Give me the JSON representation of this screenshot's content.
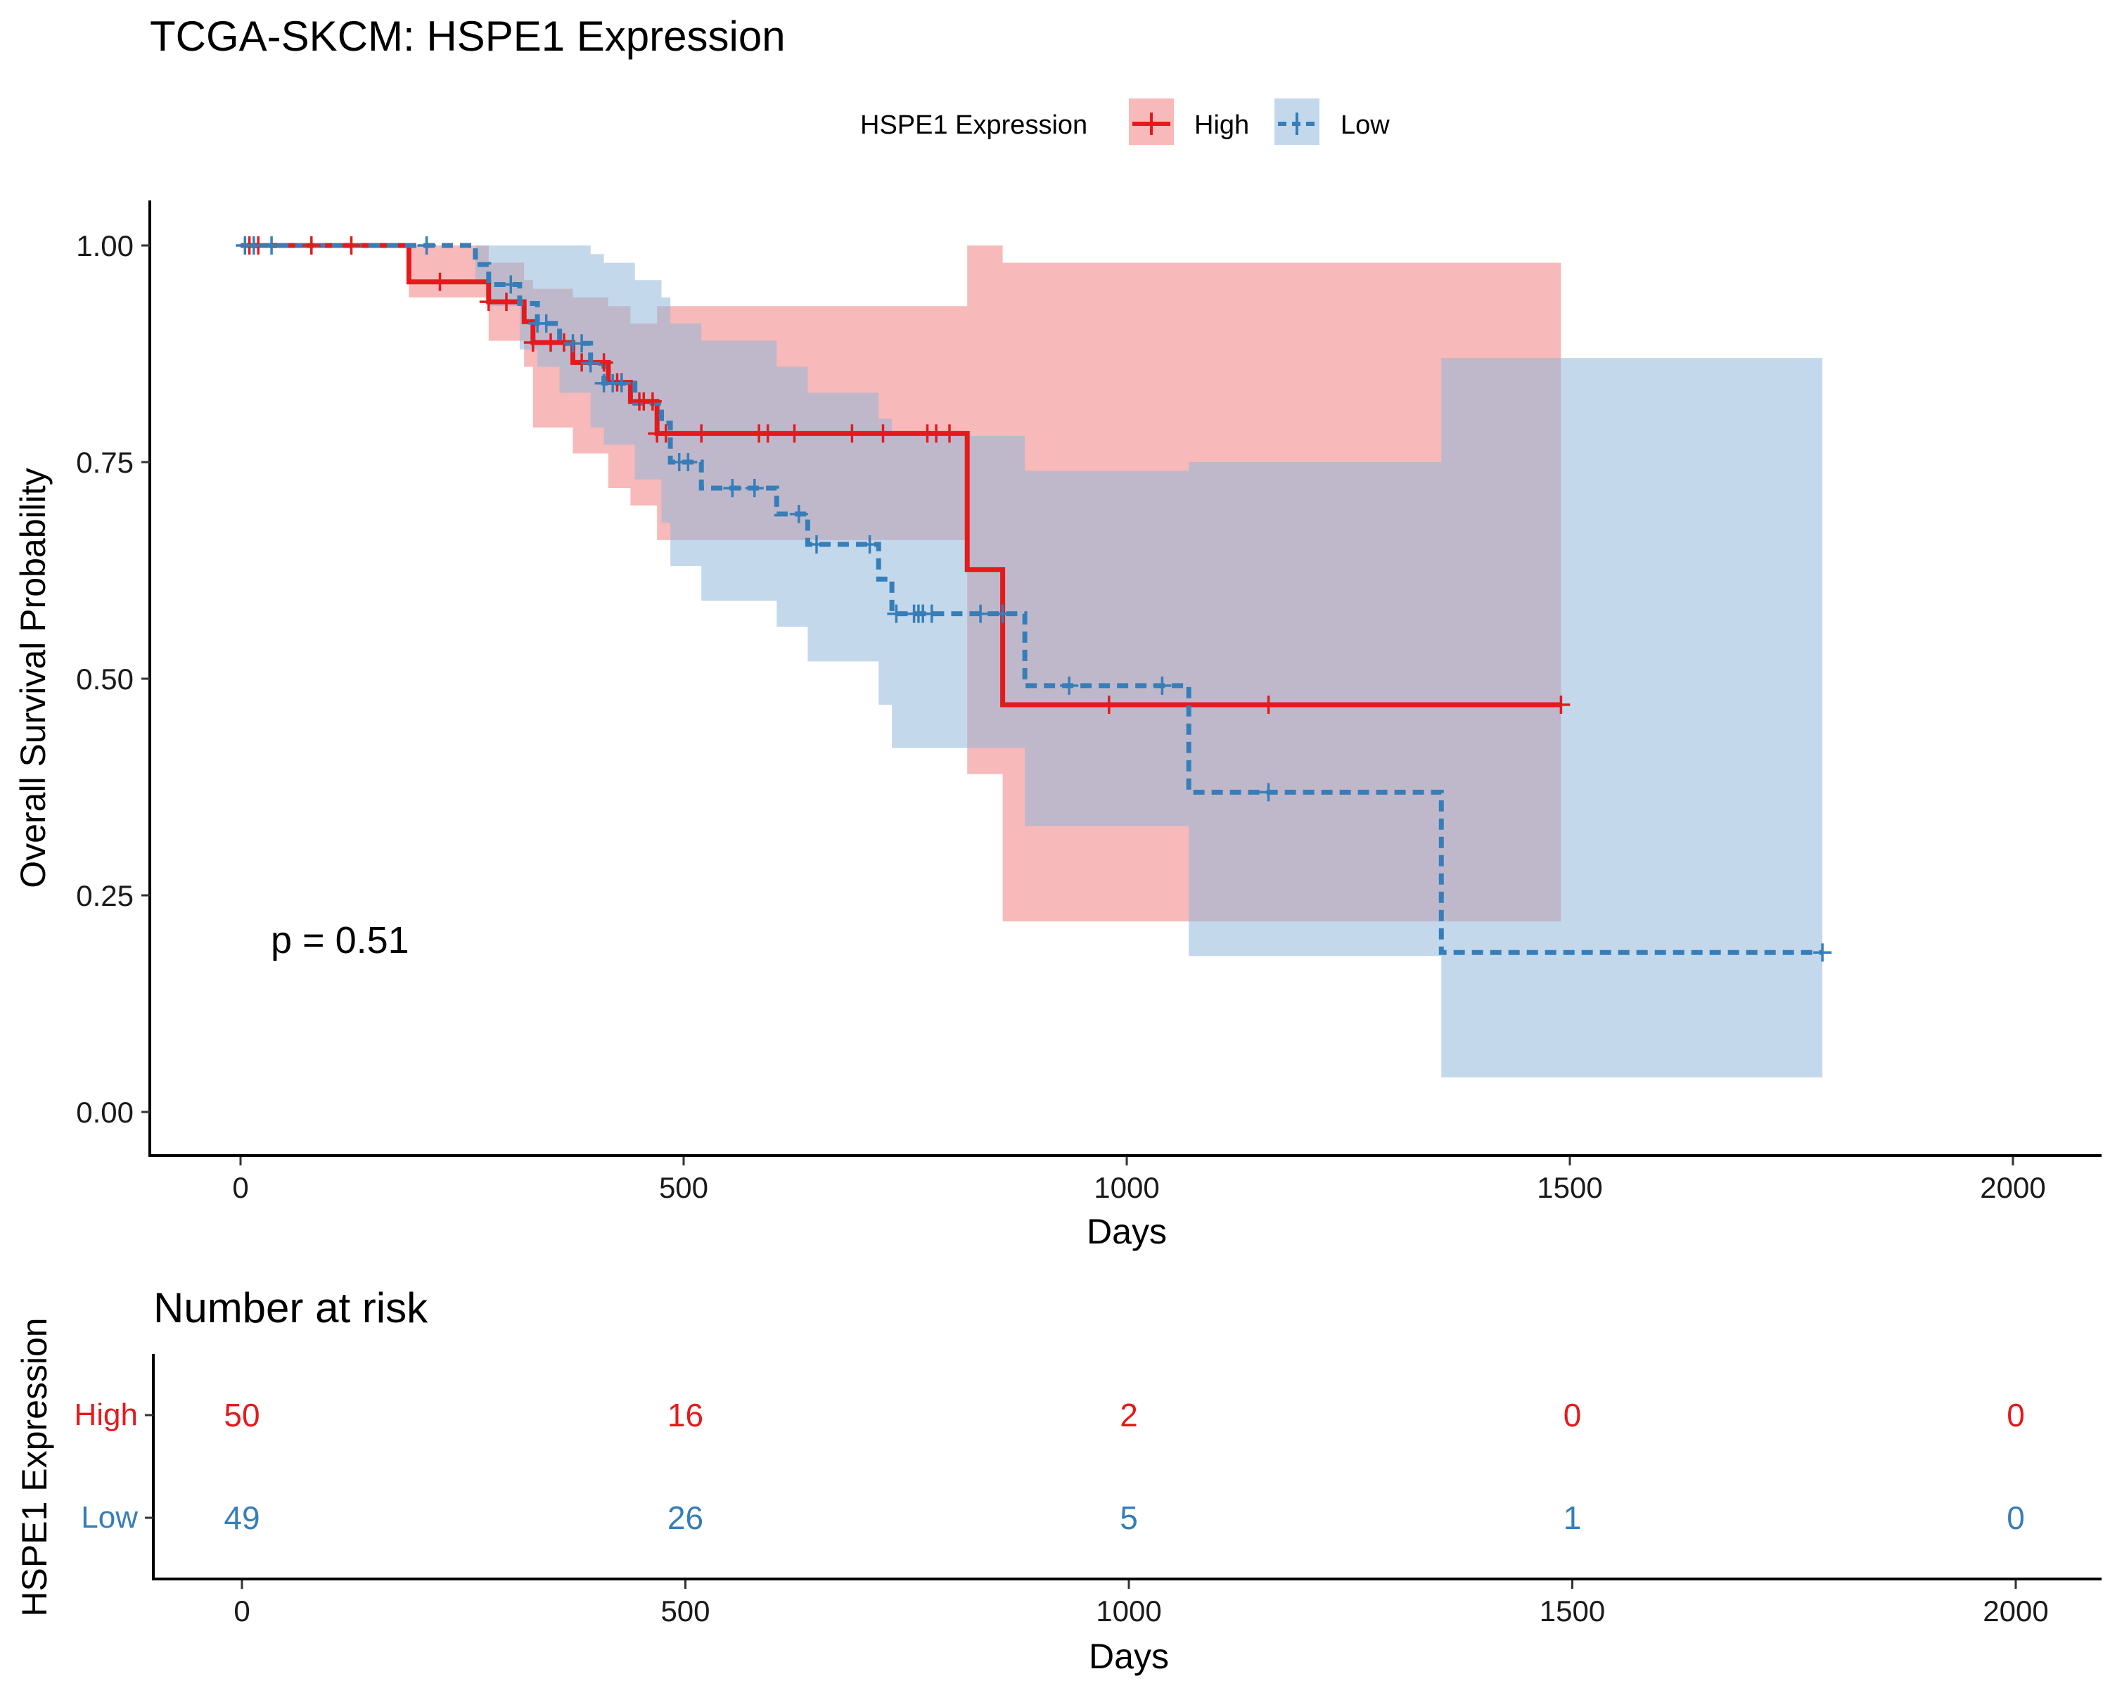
{
  "colors": {
    "high": "#E41A1C",
    "low": "#377EB8",
    "high_ci": "#F08080",
    "low_ci": "#92B8DA"
  },
  "chart_data": {
    "type": "line",
    "title": "TCGA-SKCM: HSPE1 Expression",
    "xlabel": "Days",
    "ylabel": "Overall Survival Probability",
    "xlim": [
      -100,
      2100
    ],
    "ylim": [
      -0.05,
      1.05
    ],
    "x_ticks": [
      0,
      500,
      1000,
      1500,
      2000
    ],
    "x_tick_labels": [
      "0",
      "500",
      "1000",
      "1500",
      "2000"
    ],
    "y_ticks": [
      0,
      0.25,
      0.5,
      0.75,
      1
    ],
    "y_tick_labels": [
      "0.00",
      "0.25",
      "0.50",
      "0.75",
      "1.00"
    ],
    "annotation": "p = 0.51",
    "legend": {
      "title": "HSPE1 Expression",
      "position": "top"
    },
    "series": [
      {
        "name": "High",
        "color": "#E41A1C",
        "line_style": "solid",
        "steps": [
          [
            0,
            1.0
          ],
          [
            190,
            0.958
          ],
          [
            280,
            0.935
          ],
          [
            320,
            0.912
          ],
          [
            330,
            0.888
          ],
          [
            375,
            0.865
          ],
          [
            415,
            0.842
          ],
          [
            440,
            0.82
          ],
          [
            470,
            0.783
          ],
          [
            820,
            0.626
          ],
          [
            860,
            0.47
          ],
          [
            1490,
            0.47
          ]
        ],
        "ci_steps": [
          [
            0,
            1.0,
            1.0
          ],
          [
            190,
            1.0,
            0.94
          ],
          [
            280,
            0.98,
            0.89
          ],
          [
            320,
            0.96,
            0.86
          ],
          [
            330,
            0.95,
            0.79
          ],
          [
            375,
            0.94,
            0.76
          ],
          [
            415,
            0.93,
            0.72
          ],
          [
            440,
            0.91,
            0.7
          ],
          [
            470,
            0.93,
            0.66
          ],
          [
            820,
            1.0,
            0.39
          ],
          [
            860,
            0.98,
            0.22
          ],
          [
            1490,
            0.98,
            0.22
          ]
        ],
        "censor_x": [
          10,
          20,
          80,
          125,
          225,
          280,
          300,
          330,
          350,
          365,
          385,
          410,
          425,
          430,
          450,
          455,
          465,
          470,
          480,
          520,
          585,
          595,
          625,
          690,
          725,
          775,
          785,
          800,
          980,
          1160,
          1490
        ]
      },
      {
        "name": "Low",
        "color": "#377EB8",
        "line_style": "dashed",
        "steps": [
          [
            0,
            1.0
          ],
          [
            265,
            0.978
          ],
          [
            280,
            0.955
          ],
          [
            315,
            0.933
          ],
          [
            335,
            0.91
          ],
          [
            360,
            0.887
          ],
          [
            395,
            0.864
          ],
          [
            410,
            0.841
          ],
          [
            445,
            0.818
          ],
          [
            475,
            0.795
          ],
          [
            485,
            0.75
          ],
          [
            520,
            0.72
          ],
          [
            605,
            0.69
          ],
          [
            640,
            0.655
          ],
          [
            720,
            0.615
          ],
          [
            735,
            0.575
          ],
          [
            885,
            0.492
          ],
          [
            1070,
            0.369
          ],
          [
            1355,
            0.184
          ],
          [
            1785,
            0.184
          ]
        ],
        "ci_steps": [
          [
            0,
            1.0,
            1.0
          ],
          [
            265,
            1.0,
            0.96
          ],
          [
            280,
            1.0,
            0.93
          ],
          [
            315,
            1.0,
            0.88
          ],
          [
            335,
            1.0,
            0.86
          ],
          [
            360,
            1.0,
            0.83
          ],
          [
            395,
            0.99,
            0.79
          ],
          [
            410,
            0.98,
            0.77
          ],
          [
            445,
            0.96,
            0.73
          ],
          [
            475,
            0.94,
            0.68
          ],
          [
            485,
            0.91,
            0.63
          ],
          [
            520,
            0.89,
            0.59
          ],
          [
            605,
            0.86,
            0.56
          ],
          [
            640,
            0.83,
            0.52
          ],
          [
            720,
            0.8,
            0.47
          ],
          [
            735,
            0.78,
            0.42
          ],
          [
            885,
            0.74,
            0.33
          ],
          [
            1070,
            0.75,
            0.18
          ],
          [
            1355,
            0.87,
            0.04
          ],
          [
            1785,
            0.87,
            0.04
          ]
        ],
        "censor_x": [
          5,
          15,
          35,
          210,
          305,
          335,
          345,
          375,
          385,
          395,
          410,
          420,
          430,
          495,
          505,
          555,
          580,
          630,
          650,
          710,
          740,
          760,
          765,
          770,
          780,
          835,
          860,
          935,
          1040,
          1160,
          1785
        ]
      }
    ]
  },
  "risk_table": {
    "title": "Number at risk",
    "ylabel": "HSPE1 Expression",
    "xlabel": "Days",
    "times": [
      0,
      500,
      1000,
      1500,
      2000
    ],
    "time_labels": [
      "0",
      "500",
      "1000",
      "1500",
      "2000"
    ],
    "rows": [
      {
        "group": "High",
        "color": "#E41A1C",
        "counts": [
          "50",
          "16",
          "2",
          "0",
          "0"
        ]
      },
      {
        "group": "Low",
        "color": "#377EB8",
        "counts": [
          "49",
          "26",
          "5",
          "1",
          "0"
        ]
      }
    ]
  }
}
